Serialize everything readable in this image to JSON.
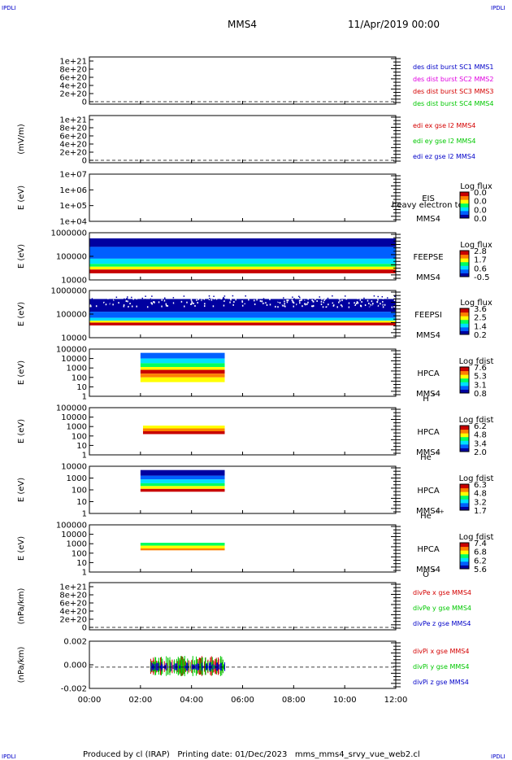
{
  "corner_label": "IPDLI",
  "header": {
    "spacecraft": "MMS4",
    "date": "11/Apr/2019 00:00"
  },
  "footer": {
    "text": "Produced by cl (IRAP)   Printing date: 01/Dec/2023   mms_mms4_srvy_vue_web2.cl"
  },
  "colors": {
    "red": "#d40000",
    "green": "#00c800",
    "blue": "#0000c8",
    "magenta": "#e000e0",
    "spectrogram": [
      "#0000a0",
      "#0060ff",
      "#00e0ff",
      "#00ff60",
      "#ffff00",
      "#ff8000",
      "#c80000"
    ]
  },
  "chart_data": {
    "type": "heatmap",
    "x_ticks": [
      "00:00",
      "02:00",
      "04:00",
      "06:00",
      "08:00",
      "10:00",
      "12:00"
    ],
    "x_range_hours": [
      0,
      12
    ],
    "panels": [
      {
        "id": "p1",
        "kind": "line",
        "ylabel": "",
        "yticks": [
          "0",
          "2e+20",
          "4e+20",
          "6e+20",
          "8e+20",
          "1e+21"
        ],
        "zero_line": true,
        "legend": [
          {
            "text": "des dist burst SC1 MMS1",
            "color": "#0000c8"
          },
          {
            "text": "des dist burst SC2 MMS2",
            "color": "#e000e0"
          },
          {
            "text": "des dist burst SC3 MMS3",
            "color": "#d40000"
          },
          {
            "text": "des dist burst SC4 MMS4",
            "color": "#00c800"
          }
        ]
      },
      {
        "id": "p2",
        "kind": "line",
        "ylabel": "(mV/m)",
        "yticks": [
          "0",
          "2e+20",
          "4e+20",
          "6e+20",
          "8e+20",
          "1e+21"
        ],
        "zero_line": true,
        "legend": [
          {
            "text": "edi ex gse l2 MMS4",
            "color": "#d40000"
          },
          {
            "text": "edi ey gse l2 MMS4",
            "color": "#00c800"
          },
          {
            "text": "edi ez gse l2 MMS4",
            "color": "#0000c8"
          }
        ]
      },
      {
        "id": "p3",
        "kind": "spectrogram",
        "ylabel": "E (eV)",
        "yticks": [
          "1e+04",
          "1e+05",
          "1e+06",
          "1e+07"
        ],
        "instrument": "EIS",
        "extra_label": "heavy electron to",
        "sc": "MMS4",
        "species": "",
        "cb_title": "Log flux",
        "cb_values": [
          "0.0",
          "0.0",
          "0.0",
          "0.0"
        ],
        "activity": []
      },
      {
        "id": "p4",
        "kind": "spectrogram",
        "ylabel": "E (eV)",
        "yticks": [
          "10000",
          "100000",
          "1000000"
        ],
        "instrument": "FEEPSE",
        "sc": "MMS4",
        "species": "",
        "cb_title": "Log flux",
        "cb_values": [
          "2.8",
          "1.7",
          "0.6",
          "-0.5"
        ],
        "activity": [
          {
            "start_h": 0.0,
            "end_h": 12.0
          }
        ]
      },
      {
        "id": "p5",
        "kind": "spectrogram",
        "ylabel": "E (eV)",
        "yticks": [
          "10000",
          "100000",
          "1000000"
        ],
        "instrument": "FEEPSI",
        "sc": "MMS4",
        "species": "",
        "cb_title": "Log flux",
        "cb_values": [
          "3.6",
          "2.5",
          "1.4",
          "0.2"
        ],
        "activity": [
          {
            "start_h": 0.0,
            "end_h": 12.0
          }
        ]
      },
      {
        "id": "p6",
        "kind": "spectrogram",
        "ylabel": "E (eV)",
        "yticks": [
          "1",
          "10",
          "100",
          "1000",
          "10000",
          "100000"
        ],
        "instrument": "HPCA",
        "sc": "MMS4",
        "species": "H",
        "species_sup": "+",
        "cb_title": "Log fdist",
        "cb_values": [
          "7.6",
          "5.3",
          "3.1",
          "0.8"
        ],
        "activity": [
          {
            "start_h": 2.0,
            "end_h": 5.3
          }
        ]
      },
      {
        "id": "p7",
        "kind": "spectrogram",
        "ylabel": "E (eV)",
        "yticks": [
          "1",
          "10",
          "100",
          "1000",
          "10000",
          "100000"
        ],
        "instrument": "HPCA",
        "sc": "MMS4",
        "species": "He",
        "species_sup": "+",
        "cb_title": "Log fdist",
        "cb_values": [
          "6.2",
          "4.8",
          "3.4",
          "2.0"
        ],
        "activity": [
          {
            "start_h": 2.1,
            "end_h": 5.3
          }
        ]
      },
      {
        "id": "p8",
        "kind": "spectrogram",
        "ylabel": "E (eV)",
        "yticks": [
          "1",
          "10",
          "100",
          "1000",
          "10000"
        ],
        "instrument": "HPCA",
        "sc": "MMS4",
        "species": "He",
        "species_sup": "++",
        "cb_title": "Log fdist",
        "cb_values": [
          "6.3",
          "4.8",
          "3.2",
          "1.7"
        ],
        "activity": [
          {
            "start_h": 2.0,
            "end_h": 5.3
          }
        ]
      },
      {
        "id": "p9",
        "kind": "spectrogram",
        "ylabel": "E (eV)",
        "yticks": [
          "1",
          "10",
          "100",
          "1000",
          "10000",
          "100000"
        ],
        "instrument": "HPCA",
        "sc": "MMS4",
        "species": "O",
        "species_sup": "+",
        "cb_title": "Log fdist",
        "cb_values": [
          "7.4",
          "6.8",
          "6.2",
          "5.6"
        ],
        "activity": [
          {
            "start_h": 2.0,
            "end_h": 5.3
          }
        ]
      },
      {
        "id": "p10",
        "kind": "line",
        "ylabel": "(nPa/km)",
        "yticks": [
          "0",
          "2e+20",
          "4e+20",
          "6e+20",
          "8e+20",
          "1e+21"
        ],
        "zero_line": true,
        "legend": [
          {
            "text": "divPe x gse MMS4",
            "color": "#d40000"
          },
          {
            "text": "divPe y gse MMS4",
            "color": "#00c800"
          },
          {
            "text": "divPe z gse MMS4",
            "color": "#0000c8"
          }
        ]
      },
      {
        "id": "p11",
        "kind": "line",
        "ylabel": "(nPa/km)",
        "yticks": [
          "-0.002",
          "0.000",
          "0.002"
        ],
        "zero_line": true,
        "legend": [
          {
            "text": "divPi x gse MMS4",
            "color": "#d40000"
          },
          {
            "text": "divPi y gse MMS4",
            "color": "#00c800"
          },
          {
            "text": "divPi z gse MMS4",
            "color": "#0000c8"
          }
        ],
        "activity": [
          {
            "start_h": 2.4,
            "end_h": 5.3
          }
        ]
      }
    ]
  }
}
